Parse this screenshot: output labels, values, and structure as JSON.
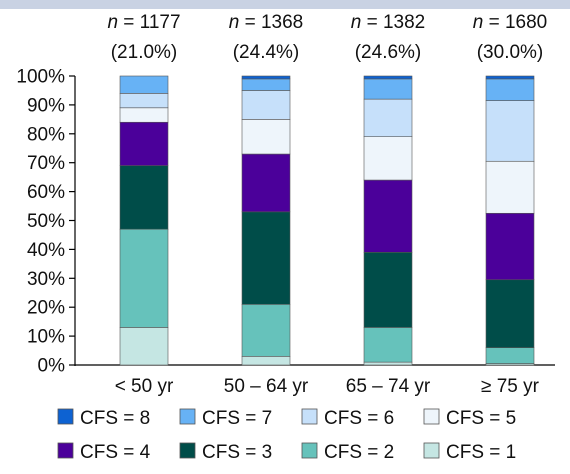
{
  "chart_data": {
    "type": "bar",
    "stacked": true,
    "normalized": true,
    "categories": [
      "< 50 yr",
      "50 – 64 yr",
      "65 – 74 yr",
      "≥ 75 yr"
    ],
    "counts": [
      {
        "n_prefix": "n",
        "n_value": "= 1177",
        "pct": "(21.0%)"
      },
      {
        "n_prefix": "n",
        "n_value": "= 1368",
        "pct": "(24.4%)"
      },
      {
        "n_prefix": "n",
        "n_value": "= 1382",
        "pct": "(24.6%)"
      },
      {
        "n_prefix": "n",
        "n_value": "= 1680",
        "pct": "(30.0%)"
      }
    ],
    "series": [
      {
        "name": "CFS = 1",
        "color": "#c5e6e3",
        "values": [
          13,
          3,
          1,
          0.5
        ]
      },
      {
        "name": "CFS = 2",
        "color": "#66c2bb",
        "values": [
          34,
          18,
          12,
          5.5
        ]
      },
      {
        "name": "CFS = 3",
        "color": "#004d49",
        "values": [
          22,
          32,
          26,
          23.5
        ]
      },
      {
        "name": "CFS = 4",
        "color": "#4b009a",
        "values": [
          15,
          20,
          25,
          23
        ]
      },
      {
        "name": "CFS = 5",
        "color": "#eef5fb",
        "values": [
          5,
          12,
          15,
          18
        ]
      },
      {
        "name": "CFS = 6",
        "color": "#c6e0fa",
        "values": [
          5,
          10,
          13,
          21
        ]
      },
      {
        "name": "CFS = 7",
        "color": "#67b2f5",
        "values": [
          6,
          4,
          7,
          7.5
        ]
      },
      {
        "name": "CFS = 8",
        "color": "#0d62d2",
        "values": [
          0,
          1,
          1,
          1
        ]
      }
    ],
    "y_ticks": [
      "0%",
      "10%",
      "20%",
      "30%",
      "40%",
      "50%",
      "60%",
      "70%",
      "80%",
      "90%",
      "100%"
    ],
    "ylim": [
      0,
      100
    ],
    "legend_order": [
      "CFS = 8",
      "CFS = 7",
      "CFS = 6",
      "CFS = 5",
      "CFS = 4",
      "CFS = 3",
      "CFS = 2",
      "CFS = 1"
    ],
    "legend_position": "bottom",
    "grid": false
  }
}
